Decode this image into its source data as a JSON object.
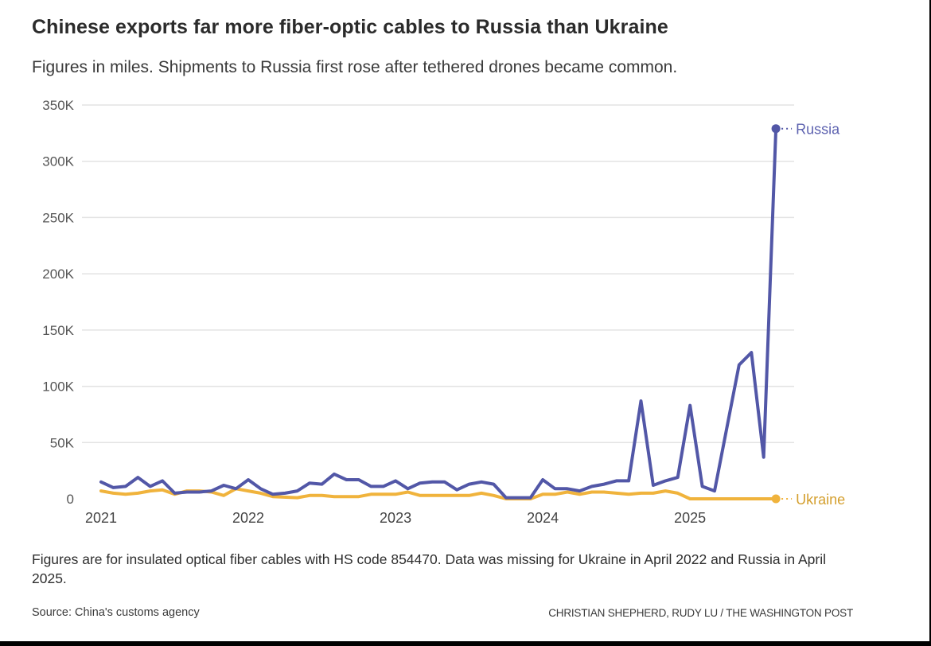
{
  "header": {
    "title": "Chinese exports far more fiber-optic cables to Russia than Ukraine",
    "subtitle": "Figures in miles. Shipments to Russia first rose after tethered drones became common."
  },
  "footer": {
    "note": "Figures are for insulated optical fiber cables with HS code 854470. Data was missing for Ukraine in April 2022 and Russia in April 2025.",
    "source": "Source: China's customs agency",
    "credit": "CHRISTIAN SHEPHERD, RUDY LU / THE WASHINGTON POST"
  },
  "chart_data": {
    "type": "line",
    "title": "Chinese exports far more fiber-optic cables to Russia than Ukraine",
    "subtitle": "Figures in miles. Shipments to Russia first rose after tethered drones became common.",
    "xlabel": "",
    "ylabel": "Miles",
    "x_unit": "month",
    "x_start": "2021-01",
    "x_end": "2025-08",
    "x_ticks": [
      {
        "label": "2021",
        "month_index": 0
      },
      {
        "label": "2022",
        "month_index": 12
      },
      {
        "label": "2023",
        "month_index": 24
      },
      {
        "label": "2024",
        "month_index": 36
      },
      {
        "label": "2025",
        "month_index": 48
      }
    ],
    "y_ticks": [
      {
        "label": "0",
        "value": 0
      },
      {
        "label": "50K",
        "value": 50000
      },
      {
        "label": "100K",
        "value": 100000
      },
      {
        "label": "150K",
        "value": 150000
      },
      {
        "label": "200K",
        "value": 200000
      },
      {
        "label": "250K",
        "value": 250000
      },
      {
        "label": "300K",
        "value": 300000
      },
      {
        "label": "350K",
        "value": 350000
      }
    ],
    "ylim": [
      0,
      350000
    ],
    "grid": true,
    "legend": "direct labels at line ends (right)",
    "series": [
      {
        "name": "Russia",
        "label": "Russia",
        "color": "#5257a7",
        "label_color": "#5e63b0",
        "values": [
          15000,
          10000,
          11000,
          19000,
          11000,
          16000,
          5000,
          6000,
          6000,
          7000,
          12000,
          9000,
          17000,
          9000,
          4000,
          5000,
          7000,
          14000,
          13000,
          22000,
          17000,
          17000,
          11000,
          11000,
          16000,
          9000,
          14000,
          15000,
          15000,
          8000,
          13000,
          15000,
          13000,
          1000,
          1000,
          1000,
          17000,
          9000,
          9000,
          7000,
          11000,
          13000,
          16000,
          16000,
          87000,
          12000,
          16000,
          19000,
          83000,
          11000,
          7000,
          null,
          119000,
          130000,
          37000,
          329000
        ]
      },
      {
        "name": "Ukraine",
        "label": "Ukraine",
        "color": "#f0b33c",
        "label_color": "#d49f2e",
        "values": [
          7000,
          5000,
          4000,
          5000,
          7000,
          8000,
          4000,
          7000,
          7000,
          6000,
          3000,
          9000,
          7000,
          5000,
          2000,
          null,
          1000,
          3000,
          3000,
          2000,
          2000,
          2000,
          4000,
          4000,
          4000,
          6000,
          3000,
          3000,
          3000,
          3000,
          3000,
          5000,
          3000,
          0,
          0,
          0,
          4000,
          4000,
          6000,
          4000,
          6000,
          6000,
          5000,
          4000,
          5000,
          5000,
          7000,
          5000,
          0,
          0,
          0,
          0,
          0,
          0,
          0,
          0
        ]
      }
    ]
  }
}
